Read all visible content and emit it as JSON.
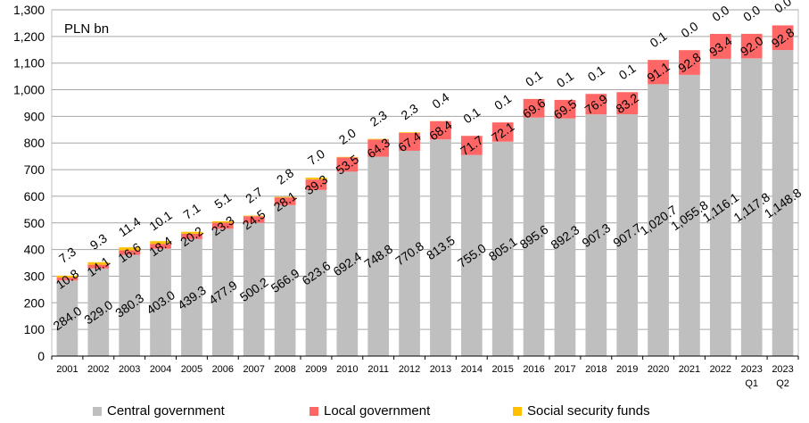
{
  "chart_data": {
    "type": "bar",
    "stacked": true,
    "unit_label": "PLN bn",
    "categories": [
      [
        "2001",
        ""
      ],
      [
        "2002",
        ""
      ],
      [
        "2003",
        ""
      ],
      [
        "2004",
        ""
      ],
      [
        "2005",
        ""
      ],
      [
        "2006",
        ""
      ],
      [
        "2007",
        ""
      ],
      [
        "2008",
        ""
      ],
      [
        "2009",
        ""
      ],
      [
        "2010",
        ""
      ],
      [
        "2011",
        ""
      ],
      [
        "2012",
        ""
      ],
      [
        "2013",
        ""
      ],
      [
        "2014",
        ""
      ],
      [
        "2015",
        ""
      ],
      [
        "2016",
        ""
      ],
      [
        "2017",
        ""
      ],
      [
        "2018",
        ""
      ],
      [
        "2019",
        ""
      ],
      [
        "2020",
        ""
      ],
      [
        "2021",
        ""
      ],
      [
        "2022",
        ""
      ],
      [
        "2023",
        "Q1"
      ],
      [
        "2023",
        "Q2"
      ]
    ],
    "ylim": [
      0,
      1300
    ],
    "yticks": [
      "0",
      "100",
      "200",
      "300",
      "400",
      "500",
      "600",
      "700",
      "800",
      "900",
      "1,000",
      "1,100",
      "1,200",
      "1,300"
    ],
    "grid": true,
    "legend_position": "bottom",
    "series": [
      {
        "name": "Central government",
        "color": "#bfbfbf",
        "values": [
          284.0,
          329.0,
          380.3,
          403.0,
          439.3,
          477.9,
          500.2,
          566.9,
          623.6,
          692.4,
          748.8,
          770.8,
          813.5,
          755.0,
          805.1,
          895.6,
          892.3,
          907.3,
          907.7,
          1020.7,
          1055.8,
          1116.1,
          1117.8,
          1148.8
        ],
        "labels": [
          "284.0",
          "329.0",
          "380.3",
          "403.0",
          "439.3",
          "477.9",
          "500.2",
          "566.9",
          "623.6",
          "692.4",
          "748.8",
          "770.8",
          "813.5",
          "755.0",
          "805.1",
          "895.6",
          "892.3",
          "907.3",
          "907.7",
          "1,020.7",
          "1,055.8",
          "1,116.1",
          "1,117.8",
          "1,148.8"
        ]
      },
      {
        "name": "Local government",
        "color": "#ff6666",
        "values": [
          10.8,
          14.1,
          16.6,
          18.4,
          20.2,
          23.3,
          24.5,
          28.1,
          39.3,
          53.5,
          64.3,
          67.4,
          68.4,
          71.7,
          72.1,
          69.6,
          69.5,
          76.9,
          83.2,
          91.1,
          92.8,
          93.4,
          92.0,
          92.8
        ],
        "labels": [
          "10.8",
          "14.1",
          "16.6",
          "18.4",
          "20.2",
          "23.3",
          "24.5",
          "28.1",
          "39.3",
          "53.5",
          "64.3",
          "67.4",
          "68.4",
          "71.7",
          "72.1",
          "69.6",
          "69.5",
          "76.9",
          "83.2",
          "91.1",
          "92.8",
          "93.4",
          "92.0",
          "92.8"
        ]
      },
      {
        "name": "Social security funds",
        "color": "#ffc000",
        "values": [
          7.3,
          9.3,
          11.4,
          10.1,
          7.1,
          5.1,
          2.7,
          2.8,
          7.0,
          2.0,
          2.3,
          2.3,
          0.4,
          0.1,
          0.1,
          0.1,
          0.1,
          0.1,
          0.1,
          0.1,
          0.0,
          0.0,
          0.0,
          0.0
        ],
        "labels": [
          "7.3",
          "9.3",
          "11.4",
          "10.1",
          "7.1",
          "5.1",
          "2.7",
          "2.8",
          "7.0",
          "2.0",
          "2.3",
          "2.3",
          "0.4",
          "0.1",
          "0.1",
          "0.1",
          "0.1",
          "0.1",
          "0.1",
          "0.1",
          "0.0",
          "0.0",
          "0.0",
          "0.0"
        ]
      }
    ]
  }
}
